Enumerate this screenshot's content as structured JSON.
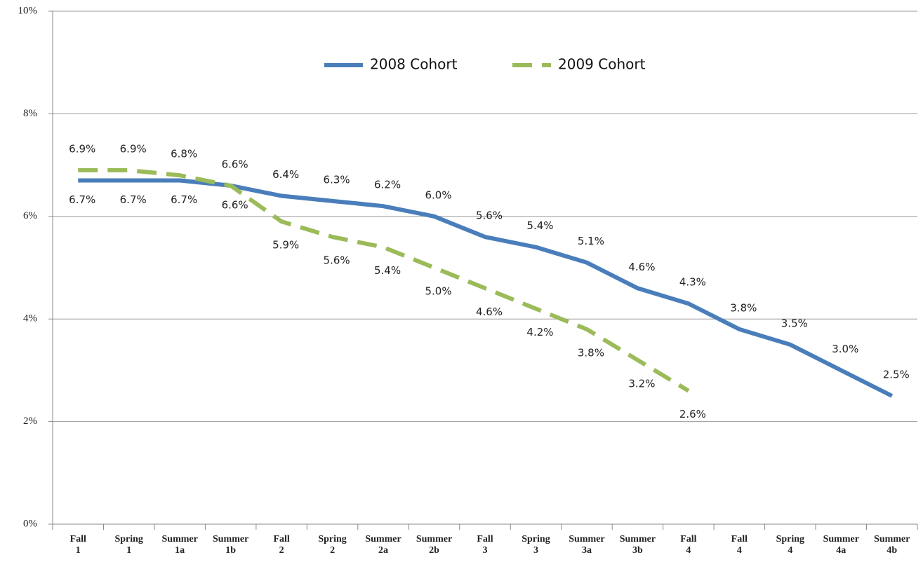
{
  "chart_data": {
    "type": "line",
    "categories": [
      "Fall\n1",
      "Spring\n1",
      "Summer\n1a",
      "Summer\n1b",
      "Fall\n2",
      "Spring\n2",
      "Summer\n2a",
      "Summer\n2b",
      "Fall\n3",
      "Spring\n3",
      "Summer\n3a",
      "Summer\n3b",
      "Fall\n4",
      "Fall\n4",
      "Spring\n4",
      "Summer\n4a",
      "Summer\n4b"
    ],
    "series": [
      {
        "name": "2008 Cohort",
        "color": "#4a7ebb",
        "dashed": false,
        "values": [
          6.7,
          6.7,
          6.7,
          6.6,
          6.4,
          6.3,
          6.2,
          6.0,
          5.6,
          5.4,
          5.1,
          4.6,
          4.3,
          3.8,
          3.5,
          3.0,
          2.5
        ],
        "value_labels": [
          "6.7%",
          "6.7%",
          "6.7%",
          "6.6%",
          "6.4%",
          "6.3%",
          "6.2%",
          "6.0%",
          "5.6%",
          "5.4%",
          "5.1%",
          "4.6%",
          "4.3%",
          "3.8%",
          "3.5%",
          "3.0%",
          "2.5%"
        ]
      },
      {
        "name": "2009 Cohort",
        "color": "#9bbb59",
        "dashed": true,
        "values": [
          6.9,
          6.9,
          6.8,
          6.6,
          5.9,
          5.6,
          5.4,
          5.0,
          4.6,
          4.2,
          3.8,
          3.2,
          2.6,
          null,
          null,
          null,
          null
        ],
        "value_labels": [
          "6.9%",
          "6.9%",
          "6.8%",
          "6.6%",
          "5.9%",
          "5.6%",
          "5.4%",
          "5.0%",
          "4.6%",
          "4.2%",
          "3.8%",
          "3.2%",
          "2.6%",
          null,
          null,
          null,
          null
        ]
      }
    ],
    "ylim": [
      0,
      10
    ],
    "yticks": [
      {
        "value": 0,
        "label": "0%"
      },
      {
        "value": 2,
        "label": "2%"
      },
      {
        "value": 4,
        "label": "4%"
      },
      {
        "value": 6,
        "label": "6%"
      },
      {
        "value": 8,
        "label": "8%"
      },
      {
        "value": 10,
        "label": "10%"
      }
    ],
    "grid": true,
    "legend": "top"
  }
}
